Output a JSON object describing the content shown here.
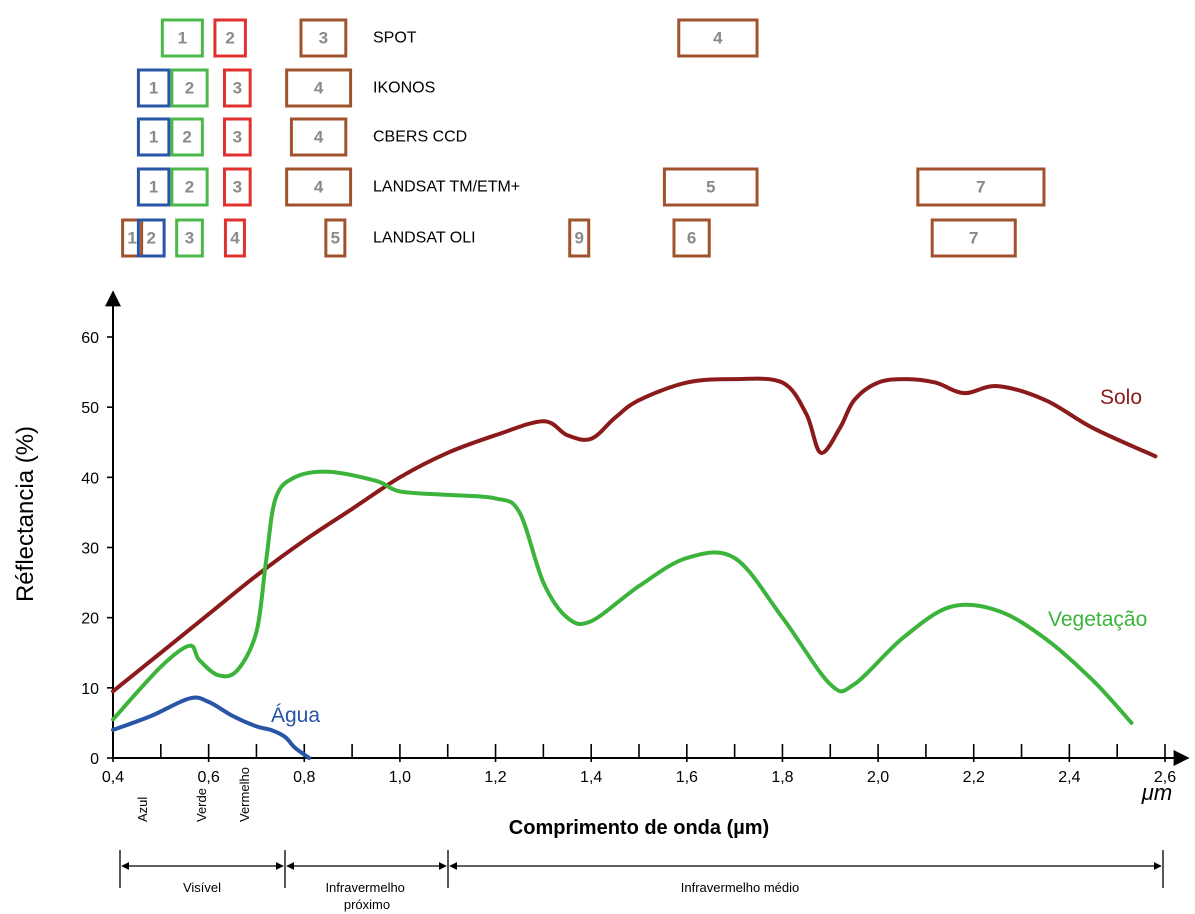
{
  "chart_data": {
    "type": "line",
    "title": "",
    "xlabel": "Comprimento de onda (µm)",
    "ylabel": "Réflectancia (%)",
    "x_unit": "μm",
    "xlim": [
      0.4,
      2.6
    ],
    "ylim": [
      0,
      60
    ],
    "x_ticks": [
      "0,4",
      "0,6",
      "0,8",
      "1,0",
      "1,2",
      "1,4",
      "1,6",
      "1,8",
      "2,0",
      "2,2",
      "2,4",
      "2,6"
    ],
    "y_ticks": [
      "0",
      "10",
      "20",
      "30",
      "40",
      "50",
      "60"
    ],
    "series": [
      {
        "name": "Solo",
        "color": "#8b1a1a",
        "points": [
          [
            0.4,
            9.5
          ],
          [
            0.5,
            15
          ],
          [
            0.6,
            20.5
          ],
          [
            0.7,
            26
          ],
          [
            0.8,
            31
          ],
          [
            0.9,
            35.5
          ],
          [
            1.0,
            40
          ],
          [
            1.1,
            43.5
          ],
          [
            1.2,
            46
          ],
          [
            1.3,
            48
          ],
          [
            1.35,
            46
          ],
          [
            1.4,
            45.5
          ],
          [
            1.45,
            48.5
          ],
          [
            1.5,
            51
          ],
          [
            1.6,
            53.5
          ],
          [
            1.7,
            54
          ],
          [
            1.8,
            53.5
          ],
          [
            1.85,
            49
          ],
          [
            1.88,
            43.5
          ],
          [
            1.92,
            47
          ],
          [
            1.95,
            51
          ],
          [
            2.0,
            53.5
          ],
          [
            2.06,
            54
          ],
          [
            2.12,
            53.5
          ],
          [
            2.18,
            52
          ],
          [
            2.25,
            53
          ],
          [
            2.35,
            51
          ],
          [
            2.45,
            47
          ],
          [
            2.58,
            43
          ]
        ]
      },
      {
        "name": "Vegetação",
        "color": "#3cb43c",
        "points": [
          [
            0.4,
            5.5
          ],
          [
            0.5,
            13
          ],
          [
            0.56,
            16
          ],
          [
            0.58,
            14
          ],
          [
            0.62,
            11.8
          ],
          [
            0.66,
            12.5
          ],
          [
            0.7,
            18
          ],
          [
            0.72,
            28
          ],
          [
            0.74,
            37
          ],
          [
            0.78,
            40
          ],
          [
            0.85,
            40.8
          ],
          [
            0.95,
            39.5
          ],
          [
            1.0,
            38
          ],
          [
            1.1,
            37.5
          ],
          [
            1.2,
            37
          ],
          [
            1.25,
            35
          ],
          [
            1.3,
            25
          ],
          [
            1.35,
            20
          ],
          [
            1.4,
            19.5
          ],
          [
            1.5,
            24.5
          ],
          [
            1.6,
            28.5
          ],
          [
            1.7,
            28.5
          ],
          [
            1.8,
            20
          ],
          [
            1.9,
            10.5
          ],
          [
            1.95,
            10.5
          ],
          [
            2.05,
            17
          ],
          [
            2.15,
            21.5
          ],
          [
            2.25,
            21
          ],
          [
            2.35,
            17
          ],
          [
            2.45,
            11
          ],
          [
            2.53,
            5
          ]
        ]
      },
      {
        "name": "Água",
        "color": "#2855a5",
        "points": [
          [
            0.4,
            4
          ],
          [
            0.48,
            6
          ],
          [
            0.56,
            8.5
          ],
          [
            0.6,
            8
          ],
          [
            0.65,
            6
          ],
          [
            0.7,
            4.5
          ],
          [
            0.73,
            4
          ],
          [
            0.76,
            3
          ],
          [
            0.78,
            1.5
          ],
          [
            0.81,
            0
          ]
        ]
      }
    ],
    "sensors": [
      {
        "name": "SPOT",
        "bands": [
          {
            "label": "1",
            "from": 0.5,
            "to": 0.59,
            "color": "#4cb84c"
          },
          {
            "label": "2",
            "from": 0.61,
            "to": 0.68,
            "color": "#e03030"
          },
          {
            "label": "3",
            "from": 0.79,
            "to": 0.89,
            "color": "#a0522d"
          },
          {
            "label": "4",
            "from": 1.58,
            "to": 1.75,
            "color": "#a0522d"
          }
        ]
      },
      {
        "name": "IKONOS",
        "bands": [
          {
            "label": "1",
            "from": 0.45,
            "to": 0.52,
            "color": "#2855a5"
          },
          {
            "label": "2",
            "from": 0.52,
            "to": 0.6,
            "color": "#4cb84c"
          },
          {
            "label": "3",
            "from": 0.63,
            "to": 0.69,
            "color": "#e03030"
          },
          {
            "label": "4",
            "from": 0.76,
            "to": 0.9,
            "color": "#a0522d"
          }
        ]
      },
      {
        "name": "CBERS CCD",
        "bands": [
          {
            "label": "1",
            "from": 0.45,
            "to": 0.52,
            "color": "#2855a5"
          },
          {
            "label": "2",
            "from": 0.52,
            "to": 0.59,
            "color": "#4cb84c"
          },
          {
            "label": "3",
            "from": 0.63,
            "to": 0.69,
            "color": "#e03030"
          },
          {
            "label": "4",
            "from": 0.77,
            "to": 0.89,
            "color": "#a0522d"
          }
        ]
      },
      {
        "name": "LANDSAT TM/ETM+",
        "bands": [
          {
            "label": "1",
            "from": 0.45,
            "to": 0.52,
            "color": "#2855a5"
          },
          {
            "label": "2",
            "from": 0.52,
            "to": 0.6,
            "color": "#4cb84c"
          },
          {
            "label": "3",
            "from": 0.63,
            "to": 0.69,
            "color": "#e03030"
          },
          {
            "label": "4",
            "from": 0.76,
            "to": 0.9,
            "color": "#a0522d"
          },
          {
            "label": "5",
            "from": 1.55,
            "to": 1.75,
            "color": "#a0522d"
          },
          {
            "label": "7",
            "from": 2.08,
            "to": 2.35,
            "color": "#a0522d"
          }
        ]
      },
      {
        "name": "LANDSAT OLI",
        "bands": [
          {
            "label": "1",
            "from": 0.43,
            "to": 0.45,
            "color": "#a0522d"
          },
          {
            "label": "2",
            "from": 0.45,
            "to": 0.51,
            "color": "#2855a5"
          },
          {
            "label": "3",
            "from": 0.53,
            "to": 0.59,
            "color": "#4cb84c"
          },
          {
            "label": "4",
            "from": 0.64,
            "to": 0.67,
            "color": "#e03030"
          },
          {
            "label": "5",
            "from": 0.85,
            "to": 0.88,
            "color": "#a0522d"
          },
          {
            "label": "9",
            "from": 1.36,
            "to": 1.39,
            "color": "#a0522d"
          },
          {
            "label": "6",
            "from": 1.57,
            "to": 1.65,
            "color": "#a0522d"
          },
          {
            "label": "7",
            "from": 2.11,
            "to": 2.29,
            "color": "#a0522d"
          }
        ]
      }
    ],
    "color_labels": [
      "Azul",
      "Verde",
      "Vermelho"
    ],
    "regions": [
      {
        "label": "Visível",
        "from": 0.4,
        "to": 0.75
      },
      {
        "label": "Infravermelho próximo",
        "from": 0.75,
        "to": 1.1
      },
      {
        "label": "Infravermelho médio",
        "from": 1.1,
        "to": 2.6
      }
    ]
  }
}
